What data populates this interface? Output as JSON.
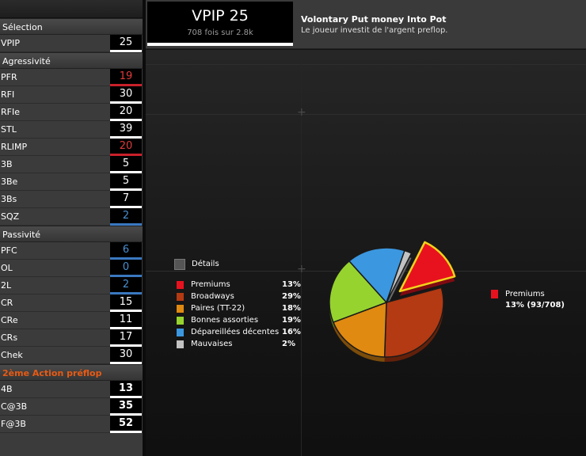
{
  "sidebar": {
    "sections": [
      {
        "title": "Sélection",
        "style": "normal",
        "rows": [
          {
            "label": "VPIP",
            "value": "25",
            "color": "white"
          }
        ]
      },
      {
        "title": "Agressivité",
        "style": "normal",
        "rows": [
          {
            "label": "PFR",
            "value": "19",
            "color": "red"
          },
          {
            "label": "RFI",
            "value": "30",
            "color": "white"
          },
          {
            "label": "RFIe",
            "value": "20",
            "color": "white"
          },
          {
            "label": "STL",
            "value": "39",
            "color": "white"
          },
          {
            "label": "RLIMP",
            "value": "20",
            "color": "red"
          },
          {
            "label": "3B",
            "value": "5",
            "color": "white"
          },
          {
            "label": "3Be",
            "value": "5",
            "color": "white"
          },
          {
            "label": "3Bs",
            "value": "7",
            "color": "white"
          },
          {
            "label": "SQZ",
            "value": "2",
            "color": "blue"
          }
        ]
      },
      {
        "title": "Passivité",
        "style": "normal",
        "rows": [
          {
            "label": "PFC",
            "value": "6",
            "color": "blue"
          },
          {
            "label": "OL",
            "value": "0",
            "color": "blue"
          },
          {
            "label": "2L",
            "value": "2",
            "color": "blue"
          },
          {
            "label": "CR",
            "value": "15",
            "color": "white"
          },
          {
            "label": "CRe",
            "value": "11",
            "color": "white"
          },
          {
            "label": "CRs",
            "value": "17",
            "color": "white"
          },
          {
            "label": "Chek",
            "value": "30",
            "color": "white"
          }
        ]
      },
      {
        "title": "2ème Action préflop",
        "style": "orange",
        "rows": [
          {
            "label": "4B",
            "value": "13",
            "color": "bold"
          },
          {
            "label": "C@3B",
            "value": "35",
            "color": "bold"
          },
          {
            "label": "F@3B",
            "value": "52",
            "color": "bold"
          }
        ]
      }
    ]
  },
  "header": {
    "stat_title": "VPIP 25",
    "stat_sub": "708 fois sur 2.8k",
    "desc_title": "Volontary Put money Into Pot",
    "desc_sub": "Le joueur investit de l'argent preflop."
  },
  "legend": {
    "title": "Détails"
  },
  "callout": {
    "name": "Premiums",
    "value": "13% (93/708)"
  },
  "chart_data": {
    "type": "pie",
    "slices": [
      {
        "name": "Premiums",
        "pct": "13%",
        "value": 13,
        "color": "#e8121f",
        "exploded": true
      },
      {
        "name": "Broadways",
        "pct": "29%",
        "value": 29,
        "color": "#b33a12"
      },
      {
        "name": "Paires (TT-22)",
        "pct": "18%",
        "value": 18,
        "color": "#e08a12"
      },
      {
        "name": "Bonnes assorties",
        "pct": "19%",
        "value": 19,
        "color": "#97d32e"
      },
      {
        "name": "Dépareillées décentes",
        "pct": "16%",
        "value": 16,
        "color": "#3b97e0"
      },
      {
        "name": "Mauvaises",
        "pct": "2%",
        "value": 2,
        "color": "#c2c2c2"
      }
    ]
  }
}
